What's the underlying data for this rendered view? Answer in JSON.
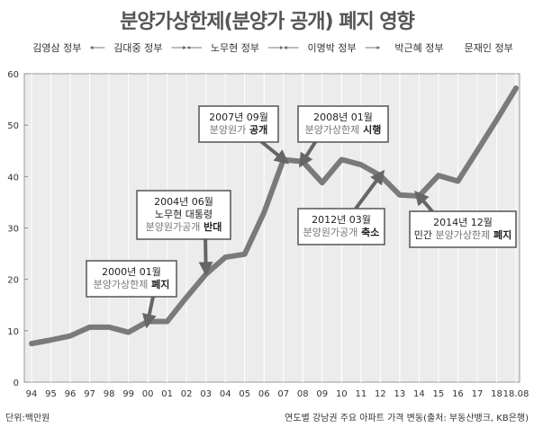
{
  "chart_data": {
    "type": "line",
    "title": "분양가상한제(분양가 공개) 폐지 영향",
    "x_tick_labels": [
      "94",
      "95",
      "96",
      "97",
      "98",
      "99",
      "00",
      "01",
      "02",
      "03",
      "04",
      "05",
      "06",
      "07",
      "08",
      "09",
      "10",
      "11",
      "12",
      "13",
      "14",
      "15",
      "16",
      "17",
      "18",
      "18.08"
    ],
    "y_ticks": [
      0,
      10,
      20,
      30,
      40,
      50,
      60
    ],
    "ylim": [
      0,
      60
    ],
    "unit_label": "단위:백만원",
    "source": "연도별 강남권 주요 아파트 가격 변동(출처: 부동산뱅크, KB은행)",
    "series": [
      {
        "color": "#7a7a7a",
        "points": [
          {
            "x": "94",
            "y": 7.5
          },
          {
            "x": "95",
            "y": 8.2
          },
          {
            "x": "96",
            "y": 9.0
          },
          {
            "x": "97",
            "y": 10.7
          },
          {
            "x": "98",
            "y": 10.7
          },
          {
            "x": "99",
            "y": 9.7
          },
          {
            "x": "00",
            "y": 11.8
          },
          {
            "x": "01",
            "y": 11.8
          },
          {
            "x": "02",
            "y": 16.5
          },
          {
            "x": "03",
            "y": 21.0
          },
          {
            "x": "04",
            "y": 24.3
          },
          {
            "x": "05",
            "y": 24.9
          },
          {
            "x": "06",
            "y": 33.0
          },
          {
            "x": "07",
            "y": 43.3
          },
          {
            "x": "08",
            "y": 42.9
          },
          {
            "x": "09",
            "y": 38.8
          },
          {
            "x": "10",
            "y": 43.3
          },
          {
            "x": "11",
            "y": 42.3
          },
          {
            "x": "12",
            "y": 40.2
          },
          {
            "x": "13",
            "y": 36.4
          },
          {
            "x": "14",
            "y": 36.2
          },
          {
            "x": "15",
            "y": 40.2
          },
          {
            "x": "16",
            "y": 39.1
          },
          {
            "x": "17",
            "y": 45.0
          },
          {
            "x": "18",
            "y": 51.0
          },
          {
            "x": "18.08",
            "y": 57.2
          }
        ]
      }
    ],
    "eras": [
      {
        "label": "김영삼 정부"
      },
      {
        "label": "김대중 정부"
      },
      {
        "label": "노무현 정부"
      },
      {
        "label": "이명박 정부"
      },
      {
        "label": "박근혜 정부"
      },
      {
        "label": "문재인 정부"
      }
    ],
    "annotations": [
      {
        "line1": "2000년 01월",
        "line2_plain": "분양가상한제",
        "line2_bold": "폐지"
      },
      {
        "line1": "2004년 06월",
        "line2_plain": "노무현 대통령",
        "line2_bold": "",
        "line3_plain": "분양원가공개",
        "line3_bold": "반대"
      },
      {
        "line1": "2007년 09월",
        "line2_plain": "분양원가",
        "line2_bold": "공개"
      },
      {
        "line1": "2008년 01월",
        "line2_plain": "분양가상한제",
        "line2_bold": "시행"
      },
      {
        "line1": "2012년 03월",
        "line2_plain": "분양원가공개",
        "line2_bold": "축소"
      },
      {
        "line1": "2014년 12월",
        "line2_pre": "민간",
        "line2_plain": "분양가상한제",
        "line2_bold": "폐지"
      }
    ],
    "grid": true,
    "legend": "none"
  }
}
